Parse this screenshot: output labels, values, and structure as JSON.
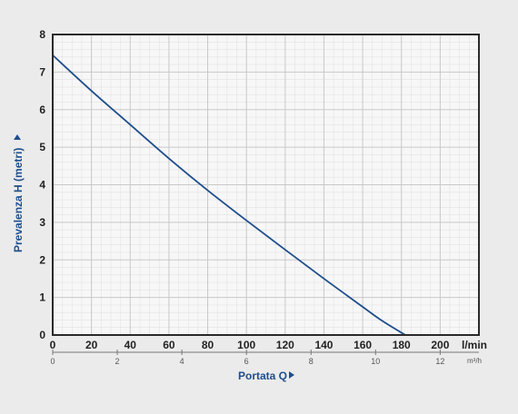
{
  "chart_data": {
    "type": "line",
    "xlabel": "Portata Q",
    "ylabel": "Prevalenza H (metri)",
    "x_unit": "l/min",
    "x2_unit": "m³/h",
    "xlim": [
      0,
      220
    ],
    "ylim": [
      0,
      8
    ],
    "x_ticks": [
      "0",
      "20",
      "40",
      "60",
      "80",
      "100",
      "120",
      "140",
      "160",
      "180",
      "200"
    ],
    "x2_ticks": [
      "0",
      "2",
      "4",
      "6",
      "8",
      "10",
      "12"
    ],
    "y_ticks": [
      "0",
      "1",
      "2",
      "3",
      "4",
      "5",
      "6",
      "7",
      "8"
    ],
    "grid": true,
    "series": [
      {
        "color": "#1f4e8c",
        "x": [
          0,
          20,
          40,
          60,
          80,
          100,
          120,
          140,
          160,
          170,
          182
        ],
        "y": [
          7.45,
          6.5,
          5.6,
          4.7,
          3.85,
          3.05,
          2.27,
          1.5,
          0.75,
          0.38,
          0
        ]
      }
    ]
  }
}
